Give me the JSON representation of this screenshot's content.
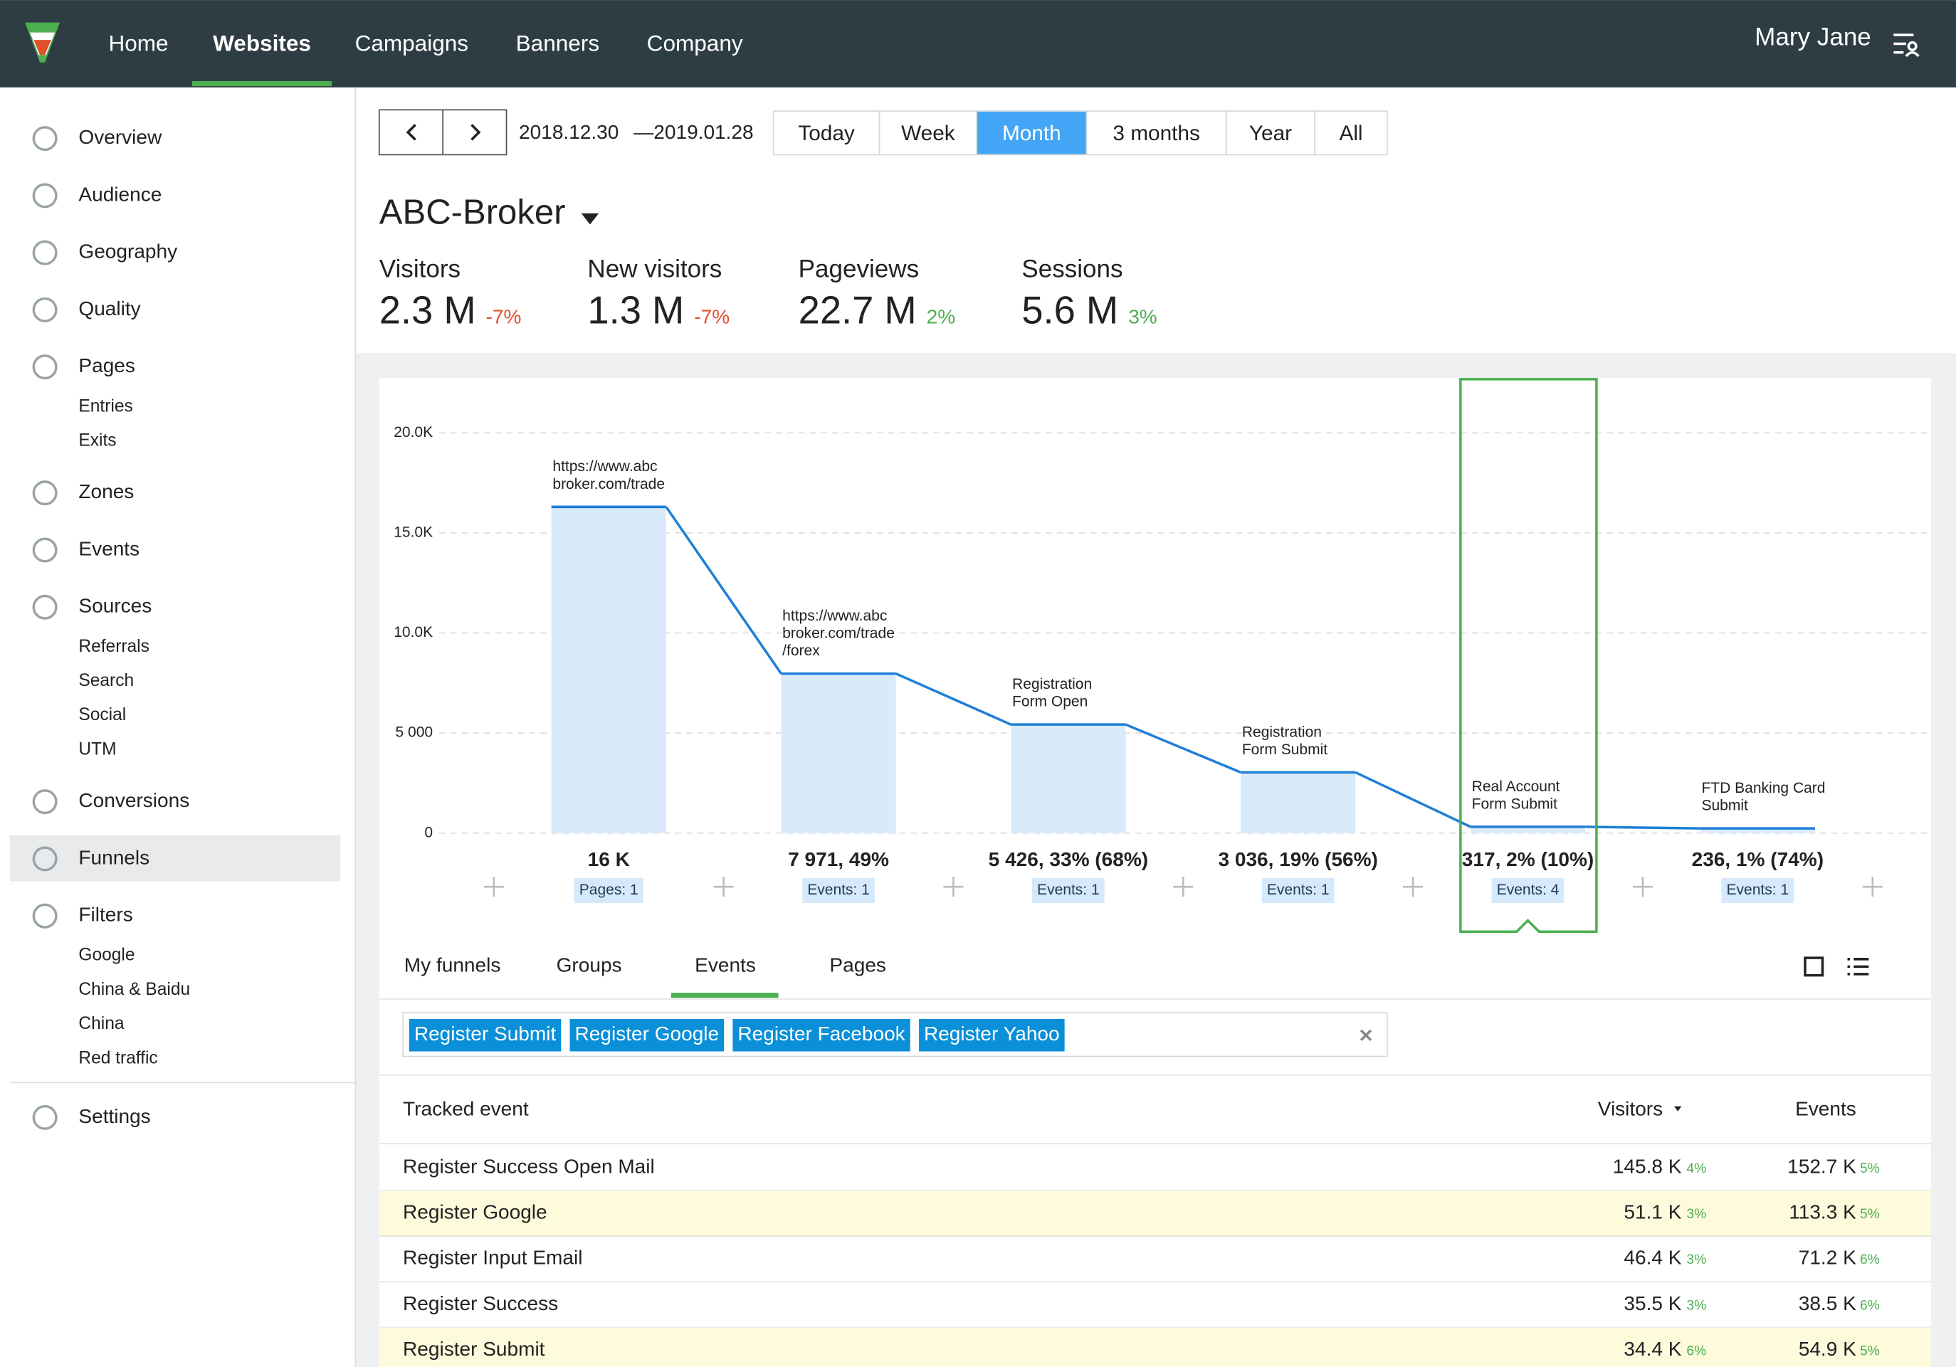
{
  "nav": {
    "items": [
      "Home",
      "Websites",
      "Campaigns",
      "Banners",
      "Company"
    ],
    "selected": "Websites",
    "user": "Mary Jane"
  },
  "sidebar": [
    {
      "label": "Overview"
    },
    {
      "label": "Audience"
    },
    {
      "label": "Geography"
    },
    {
      "label": "Quality"
    },
    {
      "label": "Pages",
      "children": [
        "Entries",
        "Exits"
      ]
    },
    {
      "label": "Zones"
    },
    {
      "label": "Events"
    },
    {
      "label": "Sources",
      "children": [
        "Referrals",
        "Search",
        "Social",
        "UTM"
      ]
    },
    {
      "label": "Conversions"
    },
    {
      "label": "Funnels"
    },
    {
      "label": "Filters",
      "children": [
        "Google",
        "China & Baidu",
        "China",
        "Red traffic"
      ]
    },
    {
      "label": "Settings"
    }
  ],
  "sidebar_selected": "Funnels",
  "toolbar": {
    "date_from": "2018.12.30",
    "date_to": "—2019.01.28",
    "periods": [
      "Today",
      "Week",
      "Month",
      "3 months",
      "Year",
      "All"
    ],
    "selected": "Month"
  },
  "site": "ABC-Broker",
  "metrics": [
    {
      "label": "Visitors",
      "value": "2.3 M",
      "delta": "-7%"
    },
    {
      "label": "New visitors",
      "value": "1.3 M",
      "delta": "-7%"
    },
    {
      "label": "Pageviews",
      "value": "22.7 M",
      "delta": "2%"
    },
    {
      "label": "Sessions",
      "value": "5.6 M",
      "delta": "3%"
    }
  ],
  "chart_data": {
    "type": "funnel",
    "categories": [
      "https://www.abc\nbroker.com/trade",
      "https://www.abc\nbroker.com/trade\n/forex",
      "Registration\nForm Open",
      "Registration\nForm Submit",
      "Real Account\nForm Submit",
      "FTD Banking Card\nSubmit"
    ],
    "values": [
      16300,
      7971,
      5426,
      3036,
      317,
      236
    ],
    "value_labels": [
      "16 K",
      "7 971, 49%",
      "5 426, 33% (68%)",
      "3 036, 19% (56%)",
      "317, 2% (10%)",
      "236, 1% (74%)"
    ],
    "step_labels": [
      "Pages: 1",
      "Events: 1",
      "Events: 1",
      "Events: 1",
      "Events: 4",
      "Events: 1"
    ],
    "ylim": [
      0,
      20000
    ],
    "yticks": [
      0,
      {
        "value": 5000,
        "label": "5 000"
      },
      {
        "value": 10000,
        "label": "10.0K"
      },
      {
        "value": 15000,
        "label": "15.0K"
      },
      {
        "value": 20000,
        "label": "20.0K"
      }
    ],
    "grid": true,
    "color": "#1e7fd8",
    "bar_color": "#d9eafa",
    "highlighted_step": 4
  },
  "tabs": {
    "items": [
      "My funnels",
      "Groups",
      "Events",
      "Pages"
    ],
    "selected": "Events"
  },
  "tags": [
    "Register Submit",
    "Register Google",
    "Register Facebook",
    "Register Yahoo"
  ],
  "table": {
    "columns": [
      "Tracked event",
      "Visitors",
      "Events"
    ],
    "rows": [
      [
        "Register Success Open Mail",
        "145.8 K",
        "4%",
        "152.7 K",
        "5%"
      ],
      [
        "Register Google",
        "51.1 K",
        "3%",
        "113.3 K",
        "5%"
      ],
      [
        "Register Input Email",
        "46.4 K",
        "3%",
        "71.2 K",
        "6%"
      ],
      [
        "Register Success",
        "35.5 K",
        "3%",
        "38.5 K",
        "6%"
      ],
      [
        "Register Submit",
        "34.4 K",
        "6%",
        "54.9 K",
        "5%"
      ]
    ]
  }
}
